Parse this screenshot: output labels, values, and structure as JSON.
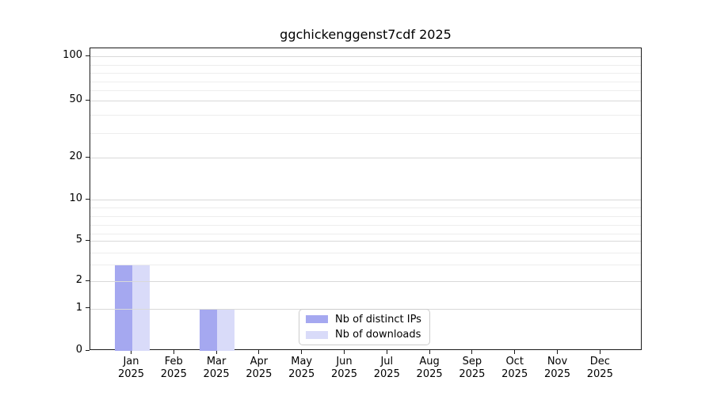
{
  "chart_data": {
    "type": "bar",
    "title": "ggchickenggenst7cdf 2025",
    "year_label": "2025",
    "categories": [
      "Jan",
      "Feb",
      "Mar",
      "Apr",
      "May",
      "Jun",
      "Jul",
      "Aug",
      "Sep",
      "Oct",
      "Nov",
      "Dec"
    ],
    "series": [
      {
        "name": "Nb of distinct IPs",
        "color": "#a5a8f0",
        "values": [
          3,
          0,
          1,
          0,
          0,
          0,
          0,
          0,
          0,
          0,
          0,
          0
        ]
      },
      {
        "name": "Nb of downloads",
        "color": "#d9dbf9",
        "values": [
          3,
          0,
          1,
          0,
          0,
          0,
          0,
          0,
          0,
          0,
          0,
          0
        ]
      }
    ],
    "xlabel": "",
    "ylabel": "",
    "yticks": [
      0,
      1,
      2,
      5,
      10,
      20,
      50,
      100
    ],
    "yticks_minor": [
      3,
      4,
      6,
      7,
      8,
      9,
      30,
      40,
      60,
      70,
      80,
      90
    ],
    "yscale": "log-like",
    "ylim": [
      0,
      110
    ],
    "grid": true,
    "legend_position": "lower center"
  }
}
